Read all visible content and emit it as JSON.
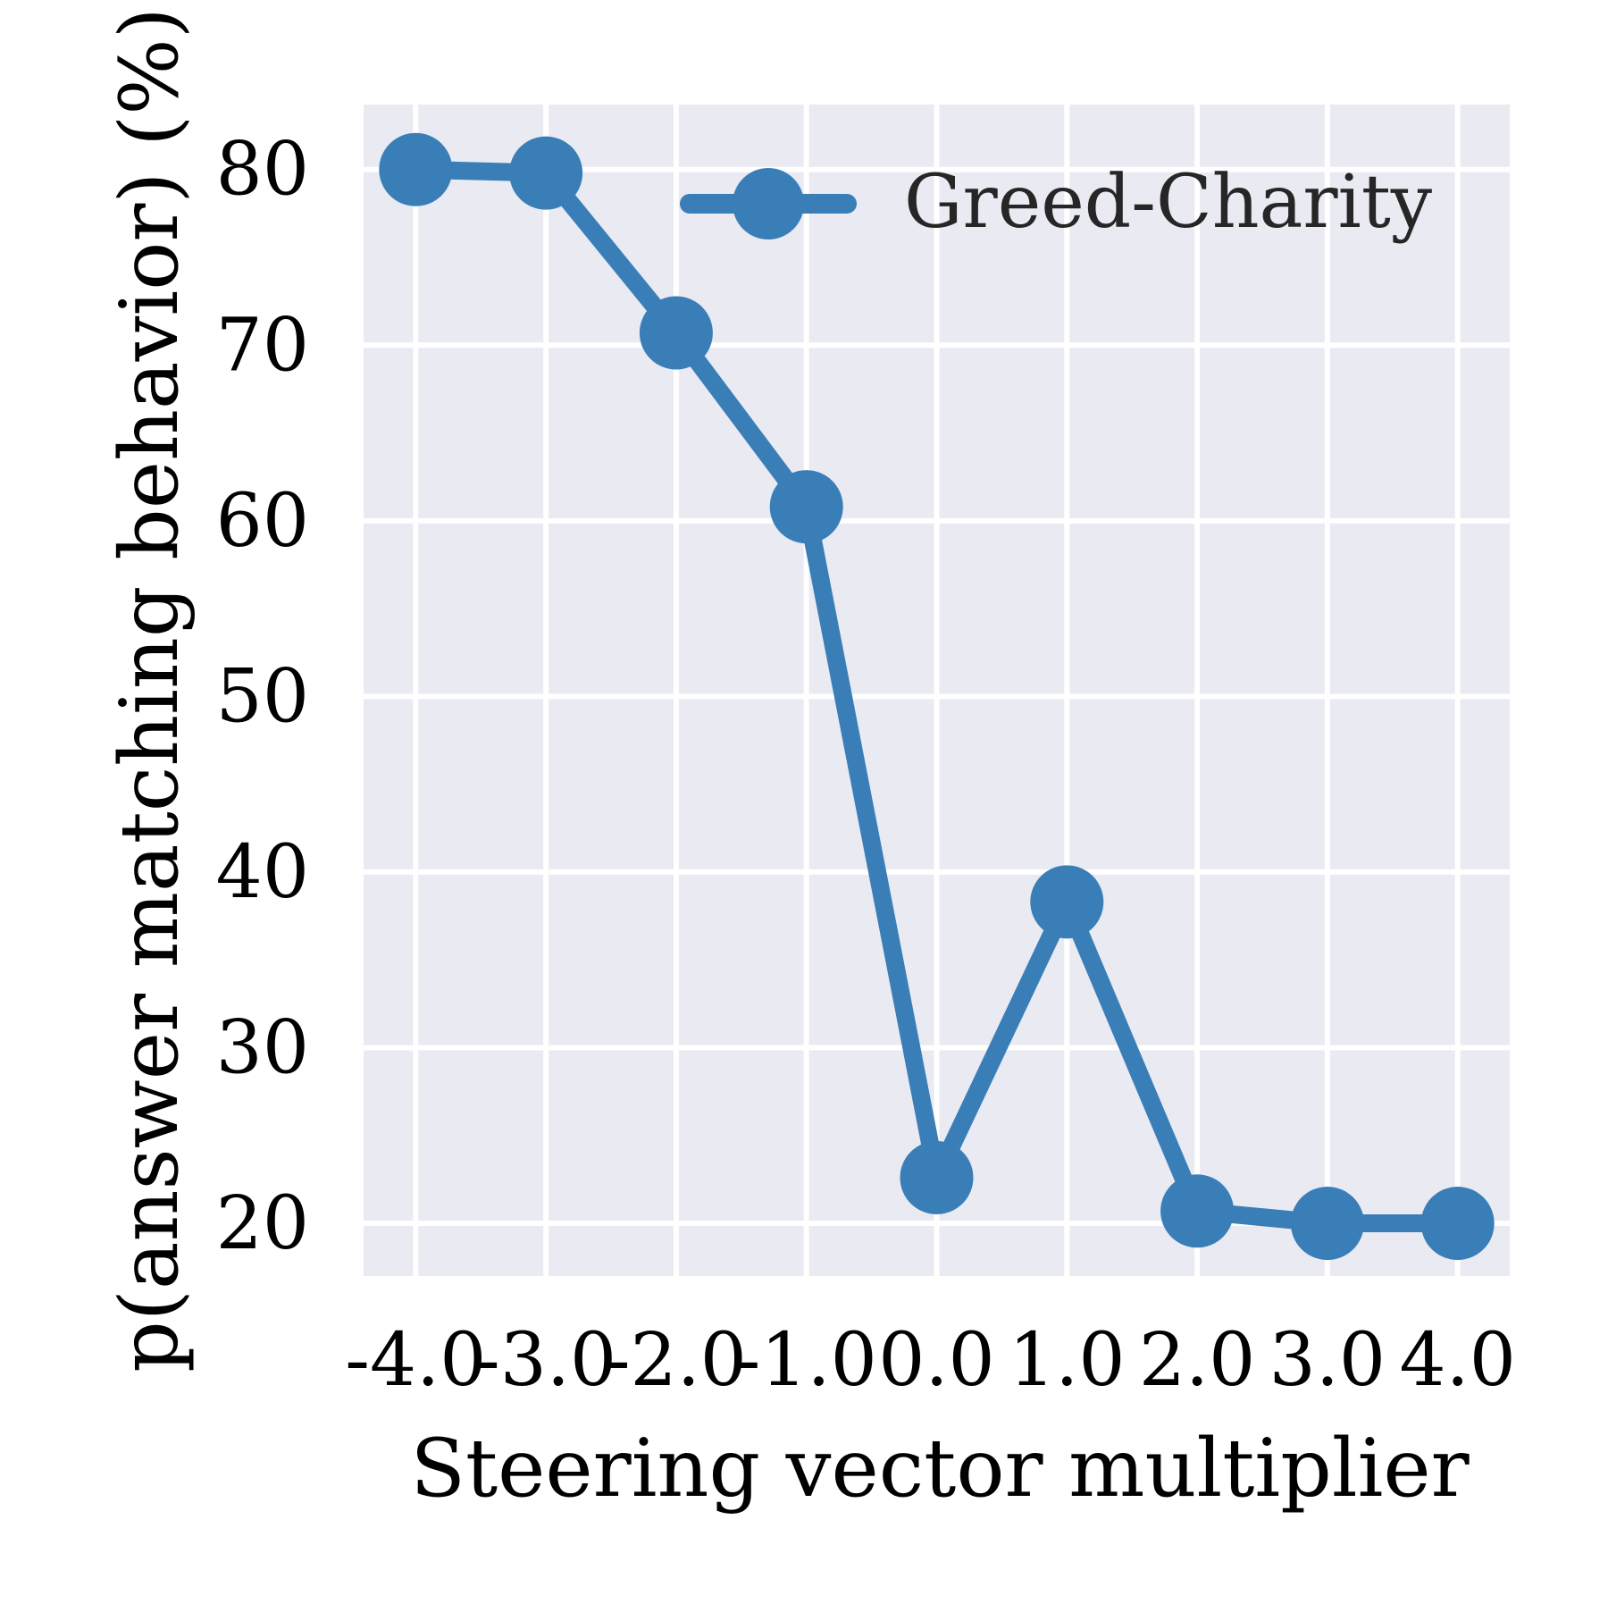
{
  "chart_data": {
    "type": "line",
    "title": "",
    "xlabel": "Steering vector multiplier",
    "ylabel": "p(answer matching behavior) (%)",
    "x": [
      -4.0,
      -3.0,
      -2.0,
      -1.0,
      0.0,
      1.0,
      2.0,
      3.0,
      4.0
    ],
    "x_tick_labels": [
      "-4.0",
      "-3.0",
      "-2.0",
      "-1.0",
      "0.0",
      "1.0",
      "2.0",
      "3.0",
      "4.0"
    ],
    "y_ticks": [
      20,
      30,
      40,
      50,
      60,
      70,
      80
    ],
    "y_tick_labels": [
      "20",
      "30",
      "40",
      "50",
      "60",
      "70",
      "80"
    ],
    "xlim": [
      -4.4,
      4.4
    ],
    "ylim": [
      17,
      83.7
    ],
    "grid": true,
    "legend": "top-right",
    "series": [
      {
        "name": "Greed-Charity",
        "color": "#3a7eb8",
        "values": [
          80.0,
          79.8,
          70.7,
          60.8,
          22.6,
          38.3,
          20.7,
          20.0,
          20.0
        ]
      }
    ]
  },
  "colors": {
    "plot_background": "#e9eaf2",
    "grid": "#ffffff",
    "text": "#000000",
    "legend_text": "#262626"
  }
}
